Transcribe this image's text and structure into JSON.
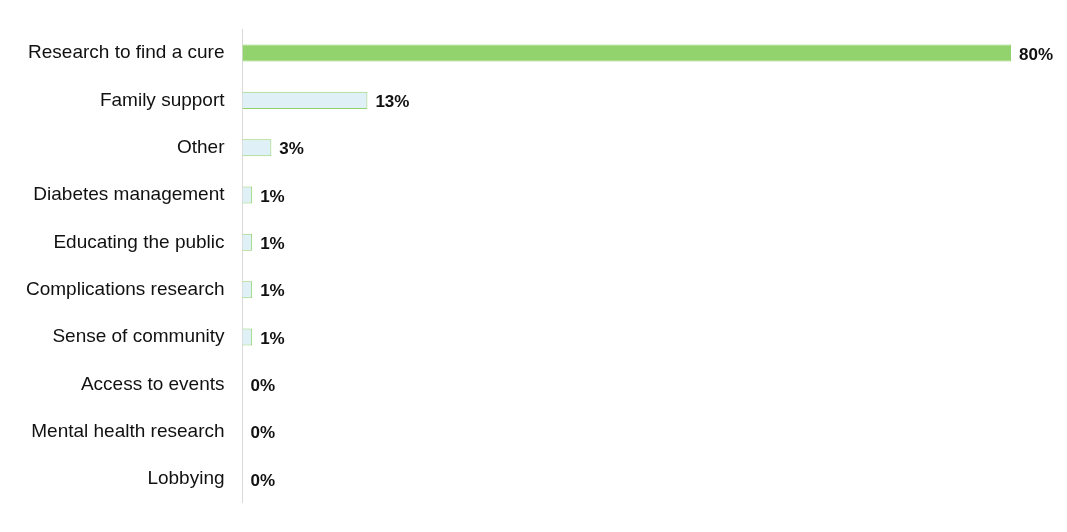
{
  "chart_data": {
    "type": "bar",
    "orientation": "horizontal",
    "categories": [
      "Research to find a cure",
      "Family support",
      "Other",
      "Diabetes management",
      "Educating the public",
      "Complications research",
      "Sense of community",
      "Access to events",
      "Mental health research",
      "Lobbying"
    ],
    "values": [
      80,
      13,
      3,
      1,
      1,
      1,
      1,
      0,
      0,
      0
    ],
    "colors": [
      "#92d36e",
      "#dff1f7",
      "#dff1f7",
      "#dff1f7",
      "#dff1f7",
      "#dff1f7",
      "#dff1f7",
      "#dff1f7",
      "#dff1f7",
      "#dff1f7"
    ],
    "value_labels": [
      "80%",
      "13%",
      "3%",
      "1%",
      "1%",
      "1%",
      "1%",
      "0%",
      "0%",
      "0%"
    ],
    "tick_labels": "y",
    "legend": false
  }
}
